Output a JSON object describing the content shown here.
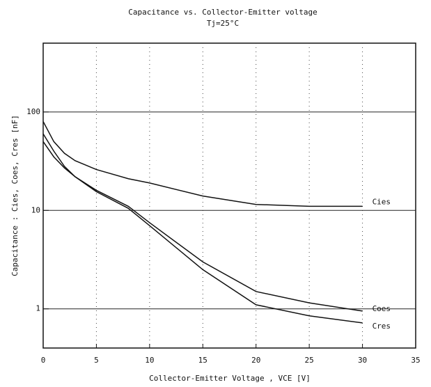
{
  "chart_data": {
    "type": "line",
    "title": "Capacitance vs. Collector-Emitter voltage",
    "subtitle": "Tj=25°C",
    "x_label": "Collector-Emitter Voltage , VCE [V]",
    "y_label": "Capacitance : Cies, Coes, Cres [nF]",
    "x": [
      0,
      1,
      2,
      3,
      5,
      8,
      10,
      15,
      20,
      25,
      30
    ],
    "series": [
      {
        "name": "Cies",
        "color": "#111111",
        "values": [
          80,
          50,
          38,
          32,
          26,
          21,
          19,
          14,
          11.5,
          11,
          11
        ]
      },
      {
        "name": "Coes",
        "color": "#111111",
        "values": [
          60,
          40,
          28,
          22,
          16,
          11,
          7.5,
          3,
          1.5,
          1.15,
          0.95
        ]
      },
      {
        "name": "Cres",
        "color": "#111111",
        "values": [
          50,
          35,
          27,
          22,
          15.5,
          10.5,
          7,
          2.5,
          1.1,
          0.85,
          0.72
        ]
      }
    ],
    "xlim": [
      0,
      35
    ],
    "xticks": [
      0,
      5,
      10,
      15,
      20,
      25,
      30,
      35
    ],
    "ylim": [
      0.4,
      500
    ],
    "yticks": [
      1,
      10,
      100
    ],
    "log_y": true,
    "grid": true
  }
}
